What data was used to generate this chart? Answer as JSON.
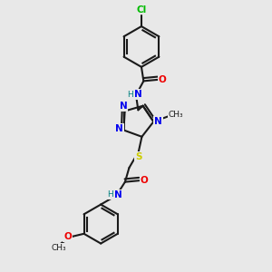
{
  "background_color": "#e8e8e8",
  "bond_color": "#1a1a1a",
  "colors": {
    "N": "#0000ee",
    "O": "#ee0000",
    "S": "#cccc00",
    "Cl": "#00bb00",
    "H": "#008080",
    "C": "#1a1a1a"
  },
  "figsize": [
    3.0,
    3.0
  ],
  "dpi": 100
}
